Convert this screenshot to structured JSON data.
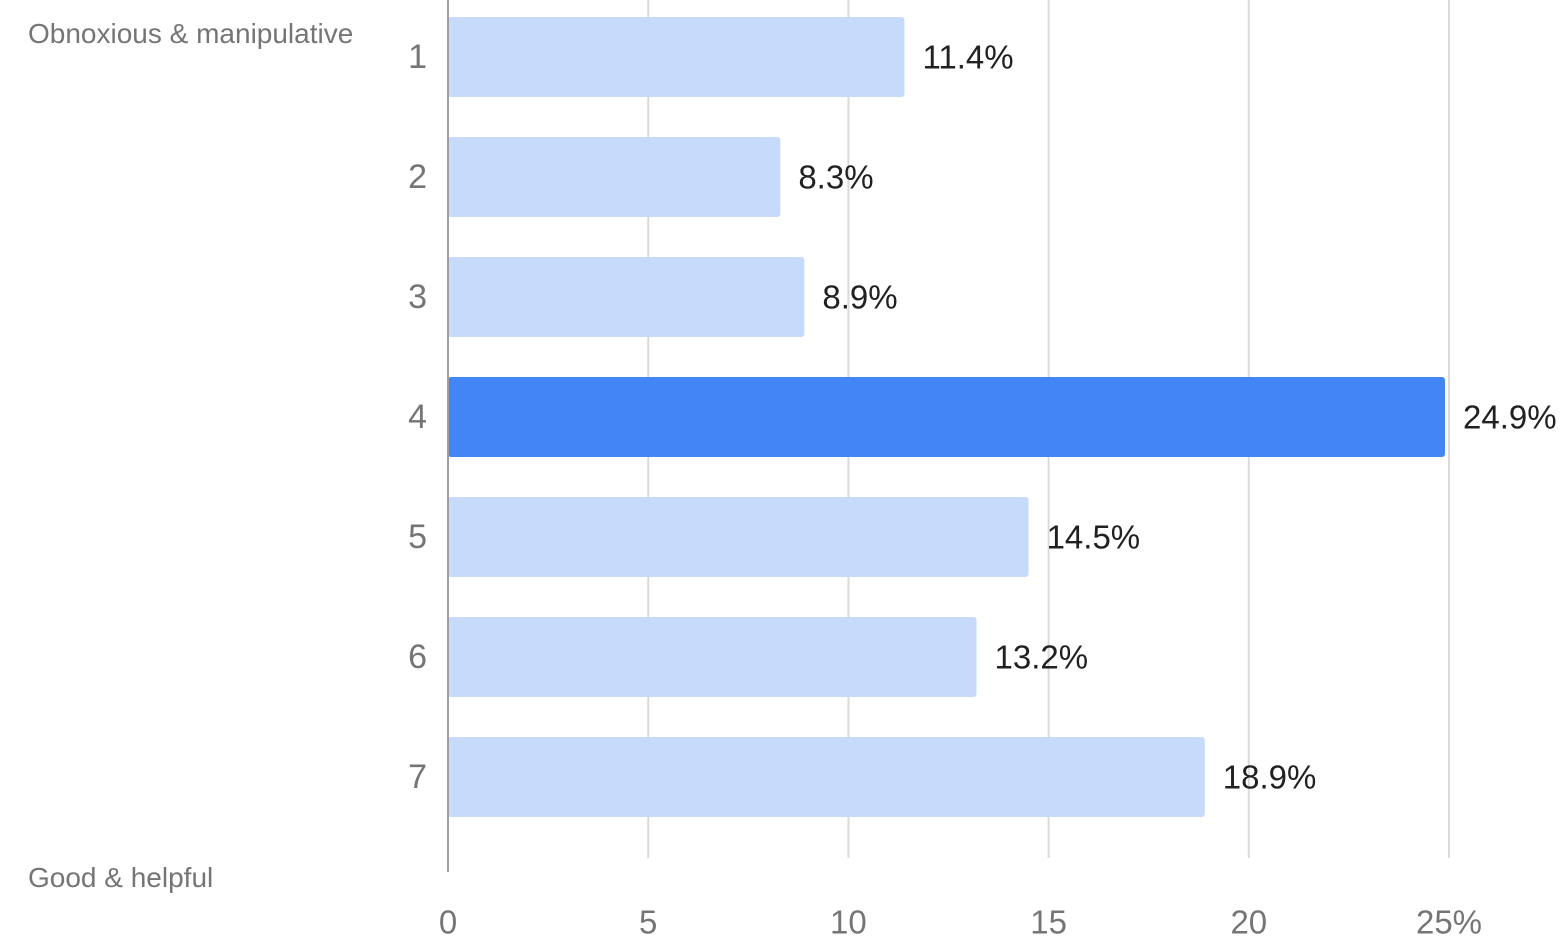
{
  "chart_data": {
    "type": "bar",
    "orientation": "horizontal",
    "categories": [
      "1",
      "2",
      "3",
      "4",
      "5",
      "6",
      "7"
    ],
    "values": [
      11.4,
      8.3,
      8.9,
      24.9,
      14.5,
      13.2,
      18.9
    ],
    "data_labels": [
      "11.4%",
      "8.3%",
      "8.9%",
      "24.9%",
      "14.5%",
      "13.2%",
      "18.9%"
    ],
    "highlight_index": 3,
    "title": "",
    "xlabel": "",
    "ylabel": "",
    "xlim": [
      0,
      25
    ],
    "x_ticks": [
      {
        "value": 0,
        "label": "0"
      },
      {
        "value": 5,
        "label": "5"
      },
      {
        "value": 10,
        "label": "10"
      },
      {
        "value": 15,
        "label": "15"
      },
      {
        "value": 20,
        "label": "20"
      },
      {
        "value": 25,
        "label": "25%"
      }
    ],
    "grid": "vertical",
    "legend": "none",
    "scale_labels": {
      "top": "Obnoxious & manipulative",
      "bottom": "Good & helpful"
    },
    "colors": {
      "bar": "#c6dafb",
      "highlight": "#4285f4",
      "grid": "#dadada",
      "axis": "#9e9e9e",
      "tick_text": "#757575",
      "data_label_text": "#212121"
    }
  }
}
